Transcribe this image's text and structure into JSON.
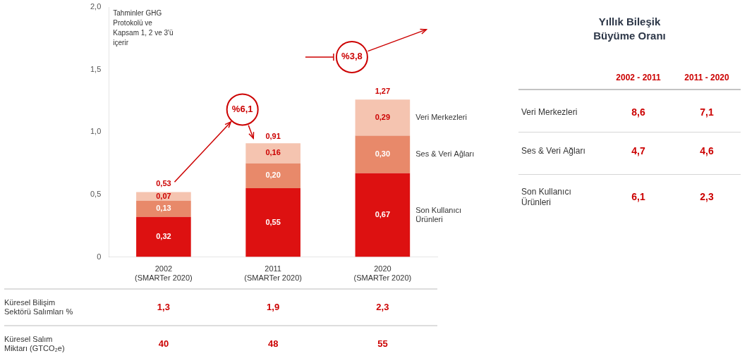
{
  "chart_data": {
    "type": "bar",
    "stacked": true,
    "data_labels": true,
    "grid": false,
    "categories": [
      "2002\n(SMARTer 2020)",
      "2011\n(SMARTer 2020)",
      "2020\n(SMARTer 2020)"
    ],
    "series": [
      {
        "name": "Son Kullanıcı\nÜrünleri",
        "color": "#dd1111",
        "values": [
          0.32,
          0.55,
          0.67
        ],
        "value_labels": [
          "0,32",
          "0,55",
          "0,67"
        ]
      },
      {
        "name": "Ses & Veri Ağları",
        "color": "#e8896a",
        "values": [
          0.13,
          0.2,
          0.3
        ],
        "value_labels": [
          "0,13",
          "0,20",
          "0,30"
        ]
      },
      {
        "name": "Veri Merkezleri",
        "color": "#f5c4b0",
        "values": [
          0.07,
          0.16,
          0.29
        ],
        "value_labels": [
          "0,07",
          "0,16",
          "0,29"
        ]
      }
    ],
    "totals": [
      0.53,
      0.91,
      1.27
    ],
    "total_labels": [
      "0,53",
      "0,91",
      "1,27"
    ],
    "ylim": [
      0,
      2.0
    ],
    "yticks": [
      0,
      {
        "value": 0.5,
        "label": "0,5"
      },
      {
        "value": 1.0,
        "label": "1,0"
      },
      {
        "value": 1.5,
        "label": "1,5"
      },
      {
        "value": 2.0,
        "label": "2,0"
      }
    ],
    "annotation": "Tahminler GHG\nProtokolü ve\nKapsam 1, 2 ve 3'ü\niçerir",
    "growth_labels": [
      "%6,1",
      "%3,8"
    ],
    "bottom_table": {
      "rows": [
        {
          "label": "Küresel Bilişim\nSektörü Salımları %",
          "values": [
            "1,3",
            "1,9",
            "2,3"
          ]
        },
        {
          "label": "Küresel Salım\nMiktarı (GTCO₂e)",
          "values": [
            "40",
            "48",
            "55"
          ]
        }
      ]
    },
    "rate_table": {
      "title": "Yıllık Bileşik\nBüyüme Oranı",
      "columns": [
        "2002 - 2011",
        "2011 - 2020"
      ],
      "rows": [
        {
          "label": "Veri Merkezleri",
          "values": [
            "8,6",
            "7,1"
          ]
        },
        {
          "label": "Ses & Veri Ağları",
          "values": [
            "4,7",
            "4,6"
          ]
        },
        {
          "label": "Son Kullanıcı\nÜrünleri",
          "values": [
            "6,1",
            "2,3"
          ]
        }
      ]
    }
  }
}
